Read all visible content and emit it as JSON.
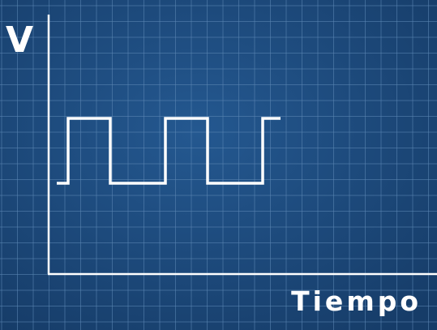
{
  "colors": {
    "background_center": "#245890",
    "background_edge": "#163c68",
    "grid_line": "#5d88b5",
    "axis": "#ffffff",
    "signal": "#ffffff"
  },
  "chart_data": {
    "type": "line",
    "title": "",
    "xlabel": "Tiempo",
    "ylabel": "V",
    "grid": true,
    "legend": "none",
    "xlim": [
      0,
      12
    ],
    "ylim": [
      0,
      10
    ],
    "series": [
      {
        "name": "",
        "step": true,
        "x": [
          0.25,
          0.6,
          0.6,
          1.9,
          1.9,
          3.6,
          3.6,
          4.9,
          4.9,
          6.6,
          6.6,
          7.15
        ],
        "y": [
          3.5,
          3.5,
          6,
          6,
          3.5,
          3.5,
          6,
          6,
          3.5,
          3.5,
          6,
          6
        ]
      }
    ]
  }
}
